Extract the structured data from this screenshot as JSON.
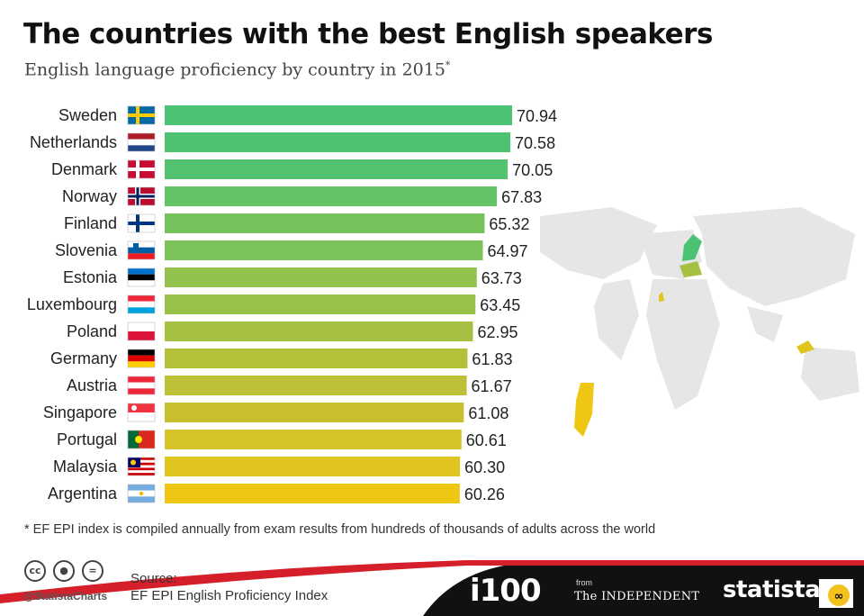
{
  "header": {
    "title": "The countries with the best English speakers",
    "subtitle": "English language proficiency by country in 2015",
    "subtitle_mark": "*"
  },
  "chart_data": {
    "type": "bar",
    "orientation": "horizontal",
    "categories": [
      "Sweden",
      "Netherlands",
      "Denmark",
      "Norway",
      "Finland",
      "Slovenia",
      "Estonia",
      "Luxembourg",
      "Poland",
      "Germany",
      "Austria",
      "Singapore",
      "Portugal",
      "Malaysia",
      "Argentina"
    ],
    "values": [
      70.94,
      70.58,
      70.05,
      67.83,
      65.32,
      64.97,
      63.73,
      63.45,
      62.95,
      61.83,
      61.67,
      61.08,
      60.61,
      60.3,
      60.26
    ],
    "value_labels": [
      "70.94",
      "70.58",
      "70.05",
      "67.83",
      "65.32",
      "64.97",
      "63.73",
      "63.45",
      "62.95",
      "61.83",
      "61.67",
      "61.08",
      "60.61",
      "60.30",
      "60.26"
    ],
    "colors": [
      "#4cc274",
      "#4fc272",
      "#54c370",
      "#63c366",
      "#75c25d",
      "#7bc25a",
      "#93c14d",
      "#99c14a",
      "#a6c042",
      "#b5c03a",
      "#bcc036",
      "#c8bf2f",
      "#d6c428",
      "#e1c51f",
      "#efc614"
    ],
    "flags": [
      "sweden-flag",
      "netherlands-flag",
      "denmark-flag",
      "norway-flag",
      "finland-flag",
      "slovenia-flag",
      "estonia-flag",
      "luxembourg-flag",
      "poland-flag",
      "germany-flag",
      "austria-flag",
      "singapore-flag",
      "portugal-flag",
      "malaysia-flag",
      "argentina-flag"
    ],
    "title": "The countries with the best English speakers",
    "subtitle": "English language proficiency by country in 2015",
    "xlabel": "",
    "ylabel": "",
    "grid": false,
    "legend": "none"
  },
  "footnote": "* EF EPI index is compiled annually from exam results from hundreds of thousands of adults across the world",
  "footer": {
    "handle": "@StatistaCharts",
    "source_label": "Source:",
    "source_value": "EF EPI English Proficiency Index",
    "i100_logo": "i100",
    "from_label": "from",
    "independent_logo": "The INDEPENDENT",
    "statista_logo": "statista",
    "cc_icons": [
      "cc-icon",
      "attribution-icon",
      "no-derivatives-icon"
    ],
    "colors": {
      "footer_bg": "#111111",
      "accent": "#d51f2a"
    }
  }
}
